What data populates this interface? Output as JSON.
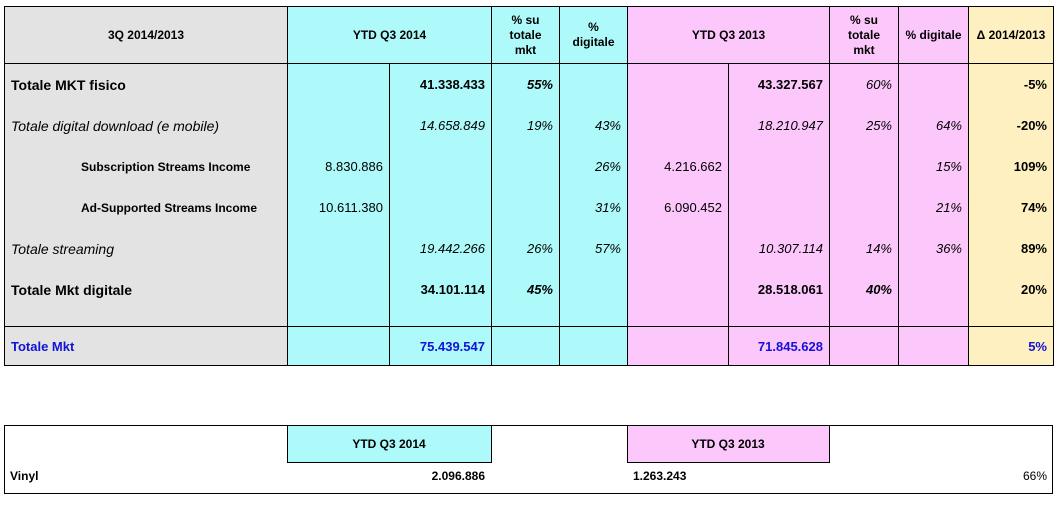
{
  "main_table": {
    "headers": {
      "title": "3Q 2014/2013",
      "ytd_2014": "YTD Q3 2014",
      "pct_tot_2014": "% su totale mkt",
      "pct_dig_2014": "% digitale",
      "ytd_2013": "YTD Q3 2013",
      "pct_tot_2013": "% su totale mkt",
      "pct_dig_2013": "% digitale",
      "delta": "Δ 2014/2013"
    },
    "rows": [
      {
        "label": "Totale MKT fisico",
        "s2014": "",
        "t2014": "41.338.433",
        "ptot2014": "55%",
        "pdig2014": "",
        "s2013": "",
        "t2013": "43.327.567",
        "ptot2013": "60%",
        "pdig2013": "",
        "delta": "-5%"
      },
      {
        "label": "Totale digital download  (e mobile)",
        "s2014": "",
        "t2014": "14.658.849",
        "ptot2014": "19%",
        "pdig2014": "43%",
        "s2013": "",
        "t2013": "18.210.947",
        "ptot2013": "25%",
        "pdig2013": "64%",
        "delta": "-20%"
      },
      {
        "label": "Subscription Streams Income",
        "s2014": "8.830.886",
        "t2014": "",
        "ptot2014": "",
        "pdig2014": "26%",
        "s2013": "4.216.662",
        "t2013": "",
        "ptot2013": "",
        "pdig2013": "15%",
        "delta": "109%"
      },
      {
        "label": "Ad-Supported Streams Income",
        "s2014": "10.611.380",
        "t2014": "",
        "ptot2014": "",
        "pdig2014": "31%",
        "s2013": "6.090.452",
        "t2013": "",
        "ptot2013": "",
        "pdig2013": "21%",
        "delta": "74%"
      },
      {
        "label": "Totale streaming",
        "s2014": "",
        "t2014": "19.442.266",
        "ptot2014": "26%",
        "pdig2014": "57%",
        "s2013": "",
        "t2013": "10.307.114",
        "ptot2013": "14%",
        "pdig2013": "36%",
        "delta": "89%"
      },
      {
        "label": "Totale Mkt digitale",
        "s2014": "",
        "t2014": "34.101.114",
        "ptot2014": "45%",
        "pdig2014": "",
        "s2013": "",
        "t2013": "28.518.061",
        "ptot2013": "40%",
        "pdig2013": "",
        "delta": "20%"
      }
    ],
    "total": {
      "label": "Totale Mkt",
      "t2014": "75.439.547",
      "t2013": "71.845.628",
      "delta": "5%"
    }
  },
  "vinyl_table": {
    "ytd_2014": "YTD Q3 2014",
    "ytd_2013": "YTD Q3 2013",
    "label": "Vinyl",
    "v2014": "2.096.886",
    "v2013": "1.263.243",
    "delta": "66%"
  },
  "colors": {
    "gray": "#e3e3e3",
    "cyan": "#aef9f9",
    "pink": "#fcc8fc",
    "yellow": "#fff0c2",
    "total_blue": "#1212d6"
  }
}
